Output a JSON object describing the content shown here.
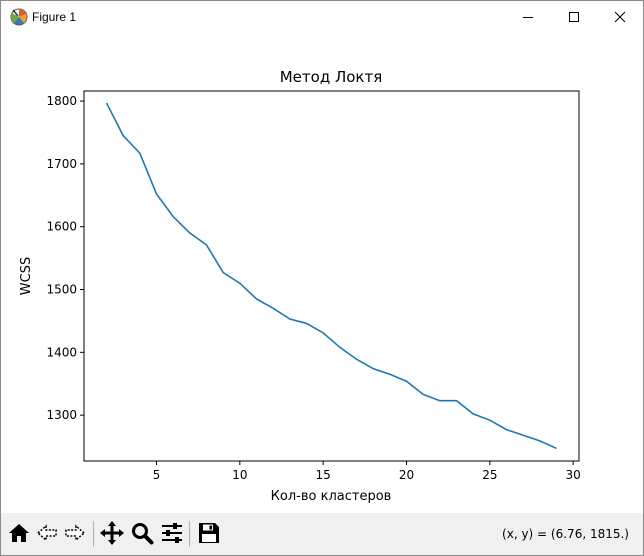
{
  "window": {
    "title": "Figure 1"
  },
  "status": {
    "coordinates": "(x, y) = (6.76, 1815.)"
  },
  "toolbar": {
    "icons": [
      "home-icon",
      "back-arrow-icon",
      "forward-arrow-icon",
      "pan-icon",
      "zoom-icon",
      "configure-subplots-icon",
      "save-icon"
    ]
  },
  "colors": {
    "line": "#1f77b4",
    "toolbar_bg": "#f0f0f0"
  },
  "chart_data": {
    "type": "line",
    "title": "Метод Локтя",
    "xlabel": "Кол-во кластеров",
    "ylabel": "WCSS",
    "xlim": [
      0.65,
      30.35
    ],
    "ylim": [
      1227,
      1816
    ],
    "xticks": [
      5,
      10,
      15,
      20,
      25,
      30
    ],
    "yticks": [
      1300,
      1400,
      1500,
      1600,
      1700,
      1800
    ],
    "x": [
      2,
      3,
      4,
      5,
      6,
      7,
      8,
      9,
      10,
      11,
      12,
      13,
      14,
      15,
      16,
      17,
      18,
      19,
      20,
      21,
      22,
      23,
      24,
      25,
      26,
      27,
      28,
      29
    ],
    "y": [
      1797,
      1745,
      1717,
      1652,
      1616,
      1590,
      1571,
      1527,
      1510,
      1485,
      1470,
      1453,
      1446,
      1431,
      1408,
      1389,
      1374,
      1365,
      1354,
      1333,
      1323,
      1323,
      1302,
      1292,
      1277,
      1268,
      1259,
      1247
    ],
    "grid": false
  }
}
